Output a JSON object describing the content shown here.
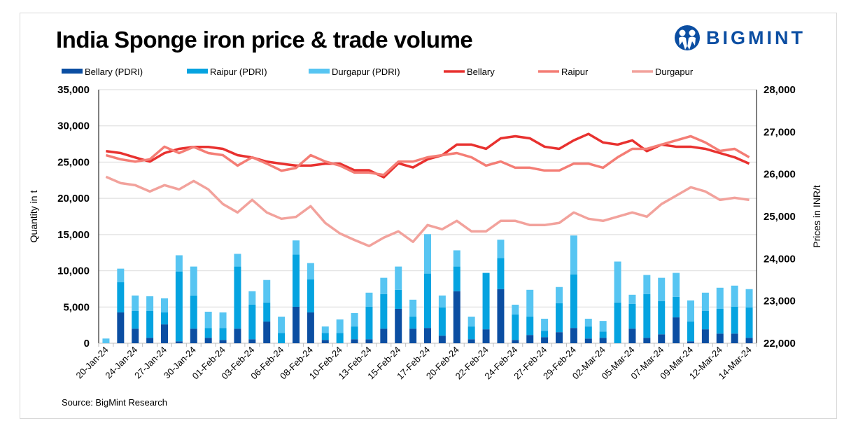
{
  "title": "India Sponge iron price & trade volume",
  "logo": "BIGMINT",
  "source": "Source: BigMint Research",
  "chart_data": {
    "type": "bar+line",
    "title": "India Sponge iron price & trade volume",
    "ylabel_left": "Quantity in t",
    "ylabel_right": "Prices in INR/t",
    "ylim_left": [
      0,
      35000
    ],
    "ylim_right": [
      22000,
      28000
    ],
    "yticks_left": [
      "0",
      "5,000",
      "10,000",
      "15,000",
      "20,000",
      "25,000",
      "30,000",
      "35,000"
    ],
    "yticks_right": [
      "22,000",
      "23,000",
      "24,000",
      "25,000",
      "26,000",
      "27,000",
      "28,000"
    ],
    "x_labels_every_other": [
      "20-Jan-24",
      "24-Jan-24",
      "27-Jan-24",
      "30-Jan-24",
      "01-Feb-24",
      "03-Feb-24",
      "06-Feb-24",
      "08-Feb-24",
      "10-Feb-24",
      "13-Feb-24",
      "15-Feb-24",
      "17-Feb-24",
      "20-Feb-24",
      "22-Feb-24",
      "24-Feb-24",
      "27-Feb-24",
      "29-Feb-24",
      "02-Mar-24",
      "05-Mar-24",
      "07-Mar-24",
      "09-Mar-24",
      "12-Mar-24",
      "14-Mar-24"
    ],
    "grid": true,
    "legend_position": "top",
    "bar_series": [
      {
        "name": "Bellary (PDRI)",
        "color": "#0b4ea2",
        "values": [
          0,
          4250,
          2010,
          750,
          2600,
          260,
          2010,
          750,
          450,
          2010,
          550,
          2990,
          0,
          5030,
          4250,
          450,
          0,
          550,
          550,
          2010,
          4740,
          2010,
          2110,
          1040,
          7180,
          550,
          1920,
          7470,
          450,
          1140,
          840,
          1530,
          2110,
          650,
          750,
          0,
          2010,
          750,
          1230,
          3570,
          260,
          1920,
          1330,
          1330,
          750
        ]
      },
      {
        "name": "Raipur (PDRI)",
        "color": "#05a3e0",
        "values": [
          0,
          4190,
          2440,
          3700,
          1650,
          9640,
          4580,
          1360,
          1660,
          8570,
          4770,
          2630,
          1430,
          7210,
          4580,
          980,
          1430,
          1760,
          4480,
          4780,
          2630,
          1660,
          7500,
          3900,
          3400,
          1760,
          7790,
          4280,
          3510,
          2530,
          880,
          3990,
          7400,
          1660,
          870,
          5620,
          3410,
          6040,
          4580,
          2830,
          2730,
          2530,
          3410,
          3700,
          4190
        ]
      },
      {
        "name": "Durgapur (PDRI)",
        "color": "#57c5f2",
        "values": [
          650,
          1850,
          2140,
          2040,
          1950,
          2240,
          3990,
          2240,
          2140,
          1760,
          1860,
          3110,
          2240,
          1950,
          2240,
          880,
          1850,
          1850,
          1950,
          2240,
          3210,
          2340,
          5450,
          1650,
          2240,
          1360,
          0,
          2540,
          1360,
          3700,
          1660,
          2240,
          5360,
          1070,
          1460,
          5650,
          1270,
          2630,
          3220,
          3310,
          2920,
          2530,
          2920,
          2920,
          2530
        ]
      }
    ],
    "line_series": [
      {
        "name": "Bellary",
        "color": "#e8312f",
        "values": [
          26545,
          26500,
          26395,
          26297,
          26500,
          26600,
          26645,
          26645,
          26600,
          26450,
          26395,
          26297,
          26247,
          26203,
          26203,
          26250,
          26250,
          26093,
          26093,
          25927,
          26258,
          26159,
          26352,
          26450,
          26700,
          26700,
          26600,
          26848,
          26898,
          26848,
          26650,
          26600,
          26800,
          26953,
          26750,
          26700,
          26800,
          26545,
          26700,
          26650,
          26650,
          26600,
          26500,
          26400,
          26250
        ]
      },
      {
        "name": "Raipur",
        "color": "#f47d75",
        "values": [
          26450,
          26352,
          26297,
          26352,
          26650,
          26500,
          26645,
          26500,
          26450,
          26203,
          26400,
          26250,
          26082,
          26148,
          26450,
          26300,
          26203,
          26037,
          26037,
          25982,
          26297,
          26297,
          26400,
          26450,
          26500,
          26400,
          26203,
          26300,
          26153,
          26153,
          26087,
          26087,
          26250,
          26250,
          26153,
          26400,
          26600,
          26600,
          26700,
          26800,
          26898,
          26750,
          26550,
          26600,
          26400
        ]
      },
      {
        "name": "Durgapur",
        "color": "#f2a29c",
        "values": [
          25938,
          25789,
          25740,
          25591,
          25740,
          25640,
          25839,
          25640,
          25293,
          25094,
          25392,
          25094,
          24945,
          24990,
          25243,
          24846,
          24598,
          24443,
          24300,
          24498,
          24648,
          24399,
          24796,
          24697,
          24896,
          24648,
          24648,
          24896,
          24896,
          24796,
          24796,
          24846,
          25094,
          24945,
          24896,
          24995,
          25094,
          24995,
          25293,
          25491,
          25690,
          25591,
          25392,
          25442,
          25392
        ]
      }
    ]
  }
}
